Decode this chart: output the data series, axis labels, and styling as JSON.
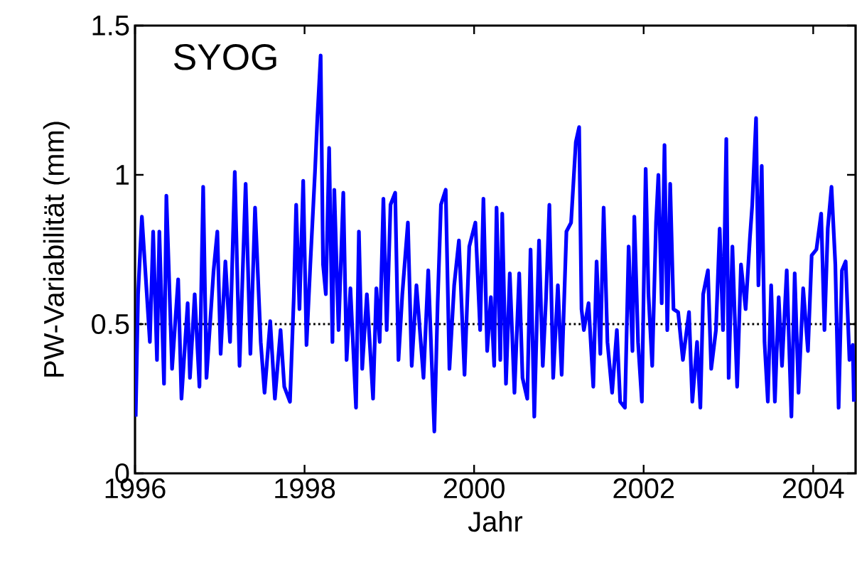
{
  "chart_data": {
    "type": "line",
    "xlabel": "Jahr",
    "ylabel": "PW-Variabilität (mm)",
    "annotations": [
      "SYOG"
    ],
    "xlim": [
      1996,
      2004.5
    ],
    "ylim": [
      0,
      1.5
    ],
    "xticks": [
      1996,
      1998,
      2000,
      2002,
      2004
    ],
    "yticks": [
      0,
      0.5,
      1,
      1.5
    ],
    "marker": "none",
    "line_style": "solid",
    "ref_lines": [
      {
        "axis": "y",
        "value": 0.5,
        "color": "#000000",
        "line_style": "dotted"
      }
    ],
    "series": [
      {
        "color": "#0000ff",
        "x": [
          1996.008,
          1996.036,
          1996.081,
          1996.175,
          1996.214,
          1996.259,
          1996.287,
          1996.342,
          1996.37,
          1996.437,
          1996.509,
          1996.548,
          1996.621,
          1996.648,
          1996.704,
          1996.76,
          1996.804,
          1996.843,
          1996.927,
          1996.971,
          1997.01,
          1997.066,
          1997.121,
          1997.177,
          1997.233,
          1997.305,
          1997.361,
          1997.416,
          1997.483,
          1997.528,
          1997.595,
          1997.65,
          1997.717,
          1997.761,
          1997.828,
          1997.873,
          1997.901,
          1997.94,
          1997.984,
          1998.023,
          1998.068,
          1998.123,
          1998.151,
          1998.19,
          1998.218,
          1998.251,
          1998.29,
          1998.329,
          1998.351,
          1998.401,
          1998.457,
          1998.496,
          1998.541,
          1998.607,
          1998.641,
          1998.68,
          1998.735,
          1998.808,
          1998.847,
          1998.886,
          1998.93,
          1998.969,
          1999.014,
          1999.069,
          1999.108,
          1999.153,
          1999.219,
          1999.264,
          1999.32,
          1999.403,
          1999.459,
          1999.531,
          1999.57,
          1999.609,
          1999.665,
          1999.709,
          1999.765,
          1999.821,
          1999.887,
          1999.943,
          2000.015,
          2000.071,
          2000.11,
          2000.154,
          2000.198,
          2000.237,
          2000.265,
          2000.309,
          2000.332,
          2000.376,
          2000.421,
          2000.476,
          2000.532,
          2000.571,
          2000.627,
          2000.666,
          2000.71,
          2000.766,
          2000.81,
          2000.849,
          2000.888,
          2000.933,
          2000.988,
          2001.033,
          2001.089,
          2001.144,
          2001.2,
          2001.239,
          2001.267,
          2001.295,
          2001.35,
          2001.406,
          2001.445,
          2001.489,
          2001.528,
          2001.573,
          2001.628,
          2001.684,
          2001.723,
          2001.779,
          2001.823,
          2001.868,
          2001.89,
          2001.934,
          2001.979,
          2002.024,
          2002.057,
          2002.101,
          2002.146,
          2002.174,
          2002.213,
          2002.246,
          2002.279,
          2002.313,
          2002.352,
          2002.407,
          2002.463,
          2002.535,
          2002.574,
          2002.63,
          2002.669,
          2002.702,
          2002.758,
          2002.797,
          2002.853,
          2002.897,
          2002.936,
          2002.975,
          2003.003,
          2003.047,
          2003.103,
          2003.148,
          2003.203,
          2003.254,
          2003.281,
          2003.326,
          2003.354,
          2003.393,
          2003.426,
          2003.465,
          2003.504,
          2003.548,
          2003.593,
          2003.632,
          2003.688,
          2003.743,
          2003.782,
          2003.827,
          2003.882,
          2003.938,
          2003.982,
          2004.038,
          2004.094,
          2004.133,
          2004.172,
          2004.216,
          2004.261,
          2004.3,
          2004.339,
          2004.383,
          2004.428,
          2004.467,
          2004.48
        ],
        "values": [
          0.19,
          0.6,
          0.86,
          0.44,
          0.81,
          0.38,
          0.81,
          0.3,
          0.93,
          0.35,
          0.65,
          0.25,
          0.57,
          0.32,
          0.6,
          0.29,
          0.96,
          0.32,
          0.68,
          0.81,
          0.4,
          0.71,
          0.44,
          1.01,
          0.36,
          0.97,
          0.4,
          0.89,
          0.44,
          0.27,
          0.51,
          0.25,
          0.48,
          0.29,
          0.24,
          0.59,
          0.9,
          0.55,
          0.98,
          0.43,
          0.7,
          1.01,
          1.19,
          1.4,
          0.7,
          0.6,
          1.09,
          0.44,
          0.95,
          0.48,
          0.94,
          0.38,
          0.62,
          0.22,
          0.81,
          0.35,
          0.6,
          0.25,
          0.62,
          0.44,
          0.92,
          0.48,
          0.9,
          0.94,
          0.38,
          0.6,
          0.84,
          0.36,
          0.63,
          0.32,
          0.68,
          0.14,
          0.57,
          0.9,
          0.95,
          0.35,
          0.63,
          0.78,
          0.33,
          0.76,
          0.84,
          0.48,
          0.92,
          0.41,
          0.59,
          0.36,
          0.89,
          0.38,
          0.87,
          0.3,
          0.67,
          0.27,
          0.67,
          0.32,
          0.25,
          0.75,
          0.19,
          0.78,
          0.36,
          0.59,
          0.9,
          0.32,
          0.63,
          0.33,
          0.81,
          0.84,
          1.11,
          1.16,
          0.55,
          0.48,
          0.57,
          0.29,
          0.71,
          0.4,
          0.89,
          0.44,
          0.27,
          0.48,
          0.24,
          0.22,
          0.76,
          0.41,
          0.86,
          0.44,
          0.24,
          1.02,
          0.6,
          0.36,
          0.84,
          1.0,
          0.57,
          1.1,
          0.48,
          0.97,
          0.55,
          0.54,
          0.38,
          0.54,
          0.24,
          0.44,
          0.22,
          0.6,
          0.68,
          0.35,
          0.48,
          0.82,
          0.48,
          1.12,
          0.32,
          0.76,
          0.29,
          0.7,
          0.55,
          0.79,
          0.9,
          1.19,
          0.63,
          1.03,
          0.44,
          0.24,
          0.63,
          0.24,
          0.59,
          0.36,
          0.68,
          0.19,
          0.67,
          0.27,
          0.62,
          0.41,
          0.73,
          0.75,
          0.87,
          0.48,
          0.82,
          0.96,
          0.7,
          0.22,
          0.68,
          0.71,
          0.38,
          0.43,
          0.24
        ]
      }
    ]
  }
}
